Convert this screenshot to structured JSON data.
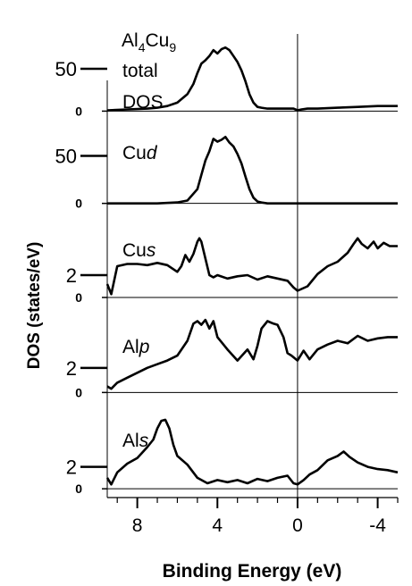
{
  "chart_data": {
    "type": "line",
    "ylabel": "DOS (states/eV)",
    "xlabel": "Binding Energy (eV)",
    "x_direction": "reversed",
    "xlim": [
      9.5,
      -5
    ],
    "xticks": [
      {
        "value": 8,
        "label": "8"
      },
      {
        "value": 4,
        "label": "4"
      },
      {
        "value": 0,
        "label": "0"
      },
      {
        "value": -4,
        "label": "-4"
      }
    ],
    "vertical_reference_line": 0,
    "panels": [
      {
        "label_parts": [
          [
            "Al",
            "n"
          ],
          [
            "4",
            "sub"
          ],
          [
            "Cu",
            "n"
          ],
          [
            "9",
            "sub"
          ]
        ],
        "label_lines": [
          "total",
          "DOS"
        ],
        "ylim": [
          -8,
          110
        ],
        "yticks": [
          {
            "value": 50,
            "label": "50"
          },
          {
            "value": 0,
            "label": "0"
          }
        ],
        "series": [
          {
            "x": [
              9.5,
              8.5,
              7.5,
              7.0,
              6.5,
              6.0,
              5.5,
              5.2,
              5.0,
              4.8,
              4.6,
              4.4,
              4.2,
              4.0,
              3.8,
              3.6,
              3.4,
              3.2,
              3.0,
              2.8,
              2.6,
              2.4,
              2.2,
              2.0,
              1.8,
              1.5,
              1.0,
              0.5,
              0.2,
              0.0,
              -0.2,
              -0.5,
              -1.0,
              -2.0,
              -3.0,
              -4.0,
              -5.0
            ],
            "y": [
              1,
              2,
              3,
              4,
              6,
              10,
              20,
              32,
              45,
              56,
              60,
              65,
              72,
              68,
              73,
              75,
              72,
              65,
              58,
              48,
              35,
              20,
              10,
              5,
              4,
              3,
              3,
              3,
              3,
              1,
              2,
              3,
              3,
              4,
              5,
              6,
              6
            ]
          }
        ]
      },
      {
        "label_parts": [
          [
            "Cu",
            "n"
          ],
          [
            "d",
            "i"
          ]
        ],
        "ylim": [
          -5,
          90
        ],
        "yticks": [
          {
            "value": 50,
            "label": "50"
          },
          {
            "value": 0,
            "label": "0"
          }
        ],
        "series": [
          {
            "x": [
              9.5,
              7.0,
              6.0,
              5.5,
              5.0,
              4.8,
              4.6,
              4.4,
              4.2,
              4.0,
              3.8,
              3.6,
              3.4,
              3.2,
              3.0,
              2.8,
              2.6,
              2.4,
              2.2,
              2.0,
              1.8,
              1.5,
              1.0,
              0.0,
              -5.0
            ],
            "y": [
              0,
              0,
              1,
              3,
              15,
              30,
              45,
              55,
              68,
              65,
              67,
              70,
              64,
              60,
              52,
              42,
              28,
              15,
              6,
              2,
              1,
              0,
              0,
              0,
              0
            ]
          }
        ]
      },
      {
        "label_parts": [
          [
            "Cu",
            "n"
          ],
          [
            "s",
            "i"
          ]
        ],
        "ylim": [
          -0.8,
          8
        ],
        "yticks": [
          {
            "value": 2,
            "label": "2"
          },
          {
            "value": 0,
            "label": "0"
          }
        ],
        "series": [
          {
            "x": [
              9.5,
              9.3,
              9.0,
              8.5,
              8.0,
              7.5,
              7.0,
              6.5,
              6.0,
              5.8,
              5.6,
              5.4,
              5.2,
              5.0,
              4.9,
              4.8,
              4.6,
              4.4,
              4.2,
              4.0,
              3.5,
              3.0,
              2.5,
              2.0,
              1.5,
              1.0,
              0.5,
              0.2,
              0.0,
              -0.5,
              -1.0,
              -1.5,
              -2.0,
              -2.5,
              -2.8,
              -3.0,
              -3.2,
              -3.5,
              -3.8,
              -4.0,
              -4.3,
              -4.6,
              -5.0
            ],
            "y": [
              1.2,
              0.3,
              2.8,
              3.0,
              3.0,
              2.9,
              3.1,
              2.9,
              2.3,
              2.8,
              3.8,
              3.2,
              3.9,
              5.0,
              5.3,
              5.0,
              3.5,
              2.0,
              1.8,
              2.0,
              1.7,
              1.9,
              2.0,
              1.6,
              1.9,
              1.7,
              1.5,
              0.9,
              0.6,
              1.0,
              2.1,
              2.8,
              3.2,
              4.0,
              4.8,
              5.3,
              4.8,
              4.4,
              5.0,
              4.4,
              4.9,
              4.6,
              4.6
            ]
          }
        ]
      },
      {
        "label_parts": [
          [
            "Al",
            "n"
          ],
          [
            "p",
            "i"
          ]
        ],
        "ylim": [
          -0.7,
          7
        ],
        "yticks": [
          {
            "value": 2,
            "label": "2"
          },
          {
            "value": 0,
            "label": "0"
          }
        ],
        "series": [
          {
            "x": [
              9.5,
              9.3,
              9.0,
              8.5,
              8.0,
              7.5,
              7.0,
              6.5,
              6.0,
              5.5,
              5.2,
              5.0,
              4.8,
              4.6,
              4.4,
              4.2,
              4.0,
              3.5,
              3.0,
              2.5,
              2.2,
              2.0,
              1.8,
              1.5,
              1.2,
              1.0,
              0.7,
              0.5,
              0.3,
              0.0,
              -0.3,
              -0.6,
              -1.0,
              -1.5,
              -2.0,
              -2.5,
              -3.0,
              -3.5,
              -4.0,
              -4.5,
              -5.0
            ],
            "y": [
              0.5,
              0.3,
              0.8,
              1.2,
              1.6,
              2.0,
              2.3,
              2.6,
              3.0,
              4.2,
              5.6,
              5.8,
              5.5,
              5.9,
              5.2,
              5.8,
              4.5,
              3.5,
              2.6,
              3.5,
              2.7,
              3.8,
              5.2,
              5.8,
              5.6,
              5.5,
              4.5,
              3.2,
              3.0,
              2.6,
              3.4,
              2.7,
              3.5,
              3.9,
              4.2,
              4.0,
              4.6,
              4.2,
              4.4,
              4.5,
              4.5
            ]
          }
        ]
      },
      {
        "label_parts": [
          [
            "Al",
            "n"
          ],
          [
            "s",
            "i"
          ]
        ],
        "ylim": [
          -0.8,
          8
        ],
        "yticks": [
          {
            "value": 2,
            "label": "2"
          },
          {
            "value": 0,
            "label": "0"
          }
        ],
        "series": [
          {
            "x": [
              9.5,
              9.3,
              9.0,
              8.5,
              8.0,
              7.5,
              7.2,
              7.0,
              6.8,
              6.6,
              6.4,
              6.2,
              6.0,
              5.5,
              5.0,
              4.5,
              4.0,
              3.5,
              3.0,
              2.5,
              2.0,
              1.5,
              1.0,
              0.5,
              0.2,
              0.0,
              -0.3,
              -0.6,
              -1.0,
              -1.5,
              -2.0,
              -2.3,
              -2.6,
              -3.0,
              -3.5,
              -4.0,
              -4.5,
              -5.0
            ],
            "y": [
              1.0,
              0.4,
              1.5,
              2.3,
              2.8,
              3.8,
              4.5,
              5.5,
              6.2,
              6.3,
              5.5,
              4.0,
              3.0,
              2.2,
              1.0,
              0.5,
              0.8,
              0.6,
              0.8,
              0.5,
              0.9,
              0.7,
              1.0,
              1.2,
              0.5,
              0.4,
              0.8,
              1.3,
              1.7,
              2.6,
              3.0,
              3.4,
              2.9,
              2.4,
              2.0,
              1.8,
              1.7,
              1.5
            ]
          }
        ]
      }
    ]
  }
}
